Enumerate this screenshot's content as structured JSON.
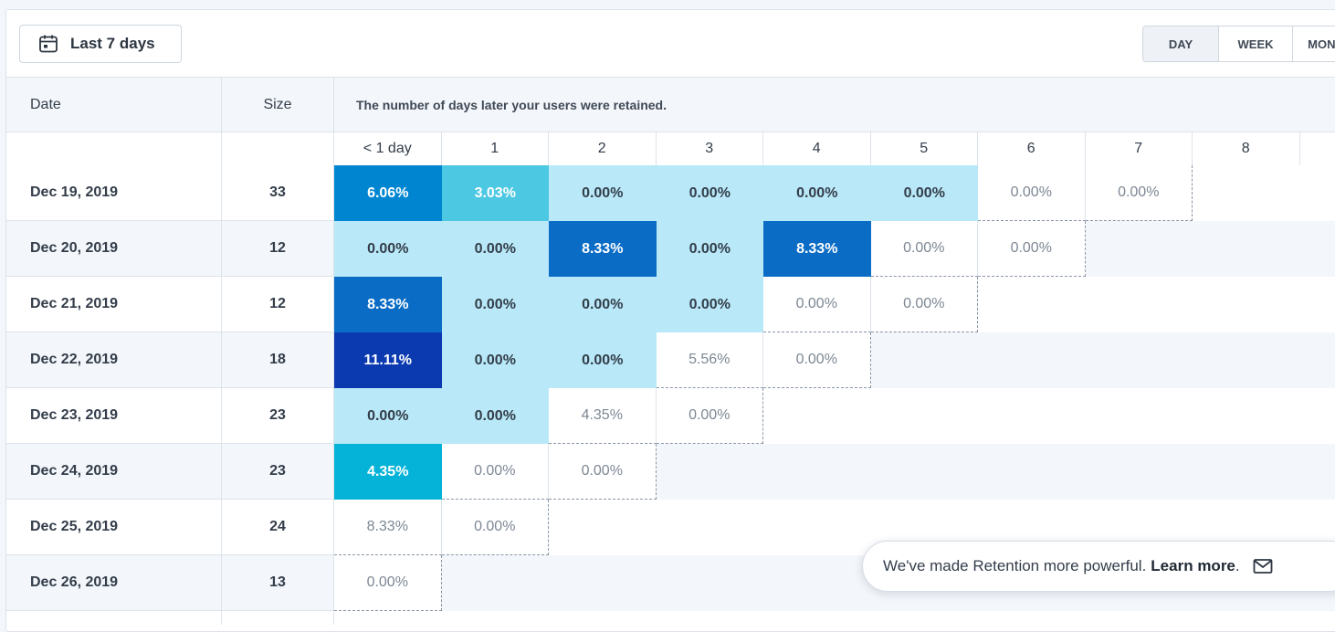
{
  "toolbar": {
    "date_range": "Last 7 days",
    "granularity": [
      {
        "label": "DAY",
        "active": true
      },
      {
        "label": "WEEK",
        "active": false
      },
      {
        "label": "MONTH",
        "active": false
      }
    ]
  },
  "table": {
    "headers": {
      "date": "Date",
      "size": "Size",
      "description": "The number of days later your users were retained."
    },
    "columns": [
      "< 1 day",
      "1",
      "2",
      "3",
      "4",
      "5",
      "6",
      "7",
      "8"
    ],
    "rows": [
      {
        "date": "Dec 19, 2019",
        "size": "33",
        "values": [
          "6.06%",
          "3.03%",
          "0.00%",
          "0.00%",
          "0.00%",
          "0.00%",
          "0.00%",
          "0.00%"
        ],
        "filled": 6
      },
      {
        "date": "Dec 20, 2019",
        "size": "12",
        "values": [
          "0.00%",
          "0.00%",
          "8.33%",
          "0.00%",
          "8.33%",
          "0.00%",
          "0.00%"
        ],
        "filled": 5
      },
      {
        "date": "Dec 21, 2019",
        "size": "12",
        "values": [
          "8.33%",
          "0.00%",
          "0.00%",
          "0.00%",
          "0.00%",
          "0.00%"
        ],
        "filled": 4
      },
      {
        "date": "Dec 22, 2019",
        "size": "18",
        "values": [
          "11.11%",
          "0.00%",
          "0.00%",
          "5.56%",
          "0.00%"
        ],
        "filled": 3
      },
      {
        "date": "Dec 23, 2019",
        "size": "23",
        "values": [
          "0.00%",
          "0.00%",
          "4.35%",
          "0.00%"
        ],
        "filled": 2
      },
      {
        "date": "Dec 24, 2019",
        "size": "23",
        "values": [
          "4.35%",
          "0.00%",
          "0.00%"
        ],
        "filled": 1
      },
      {
        "date": "Dec 25, 2019",
        "size": "24",
        "values": [
          "8.33%",
          "0.00%"
        ],
        "filled": 0
      },
      {
        "date": "Dec 26, 2019",
        "size": "13",
        "values": [
          "0.00%"
        ],
        "filled": 0
      }
    ]
  },
  "colors": {
    "pale": "#b9e9f8",
    "light_cyan": "#4dc8e3",
    "cyan": "#06b3d8",
    "blue": "#0086d1",
    "mid_blue": "#0a6cc5",
    "dark_blue": "#0b3ab0"
  },
  "toast": {
    "message": "We've made Retention more powerful.",
    "link": "Learn more",
    "suffix": "."
  }
}
